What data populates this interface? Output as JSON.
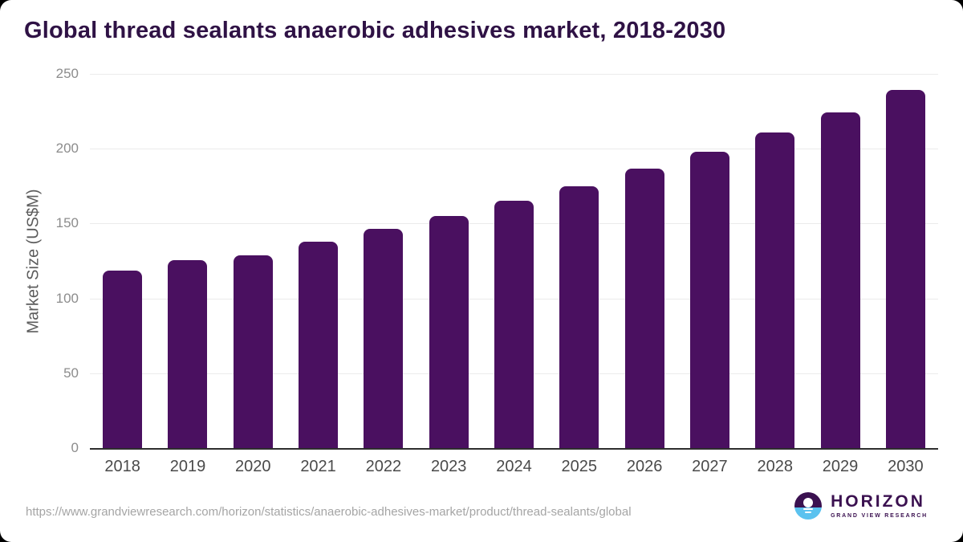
{
  "header": {
    "title": "Global thread sealants anaerobic adhesives market, 2018-2030"
  },
  "chart_data": {
    "type": "bar",
    "title": "Global thread sealants anaerobic adhesives market, 2018-2030",
    "categories": [
      "2018",
      "2019",
      "2020",
      "2021",
      "2022",
      "2023",
      "2024",
      "2025",
      "2026",
      "2027",
      "2028",
      "2029",
      "2030"
    ],
    "values": [
      118.6,
      125.4,
      129.0,
      137.9,
      146.4,
      155.3,
      165.0,
      175.0,
      186.5,
      198.1,
      211.1,
      224.4,
      239.3
    ],
    "xlabel": "",
    "ylabel": "Market Size (US$M)",
    "ylim": [
      0,
      250
    ],
    "yticks": [
      0,
      50,
      100,
      150,
      200,
      250
    ],
    "grid": true,
    "legend": false,
    "bar_color": "#4a1060"
  },
  "footer": {
    "source_url": "https://www.grandviewresearch.com/horizon/statistics/anaerobic-adhesives-market/product/thread-sealants/global",
    "logo": {
      "brand": "HORIZON",
      "sub_brand": "GRAND VIEW RESEARCH"
    }
  },
  "colors": {
    "bar": "#4a1060",
    "title": "#2f1245",
    "gridline": "#ebebeb",
    "axis_line": "#2e2e2e",
    "logo_purple": "#3b1150",
    "logo_blue": "#5bc2ef"
  }
}
